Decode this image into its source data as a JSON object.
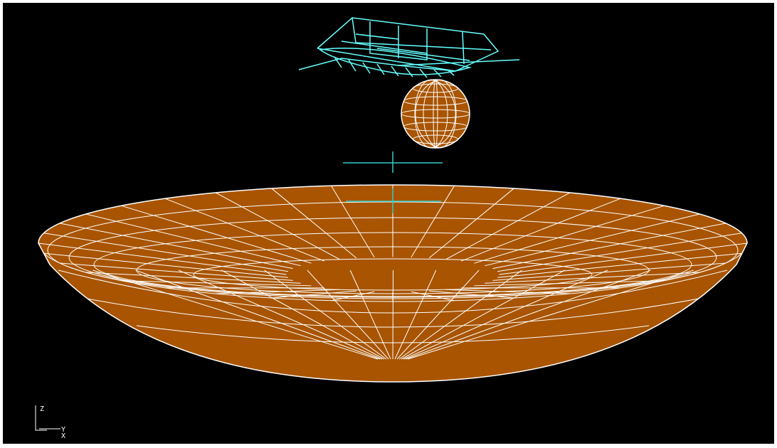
{
  "axis_triad": {
    "labels": [
      "Z",
      "Y",
      "X"
    ]
  }
}
